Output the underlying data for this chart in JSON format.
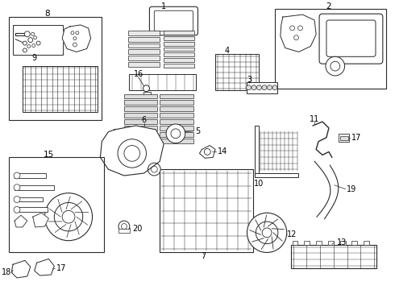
{
  "background_color": "#ffffff",
  "line_color": "#2a2a2a",
  "fig_width": 4.9,
  "fig_height": 3.6,
  "dpi": 100,
  "label_fs": 7.0
}
